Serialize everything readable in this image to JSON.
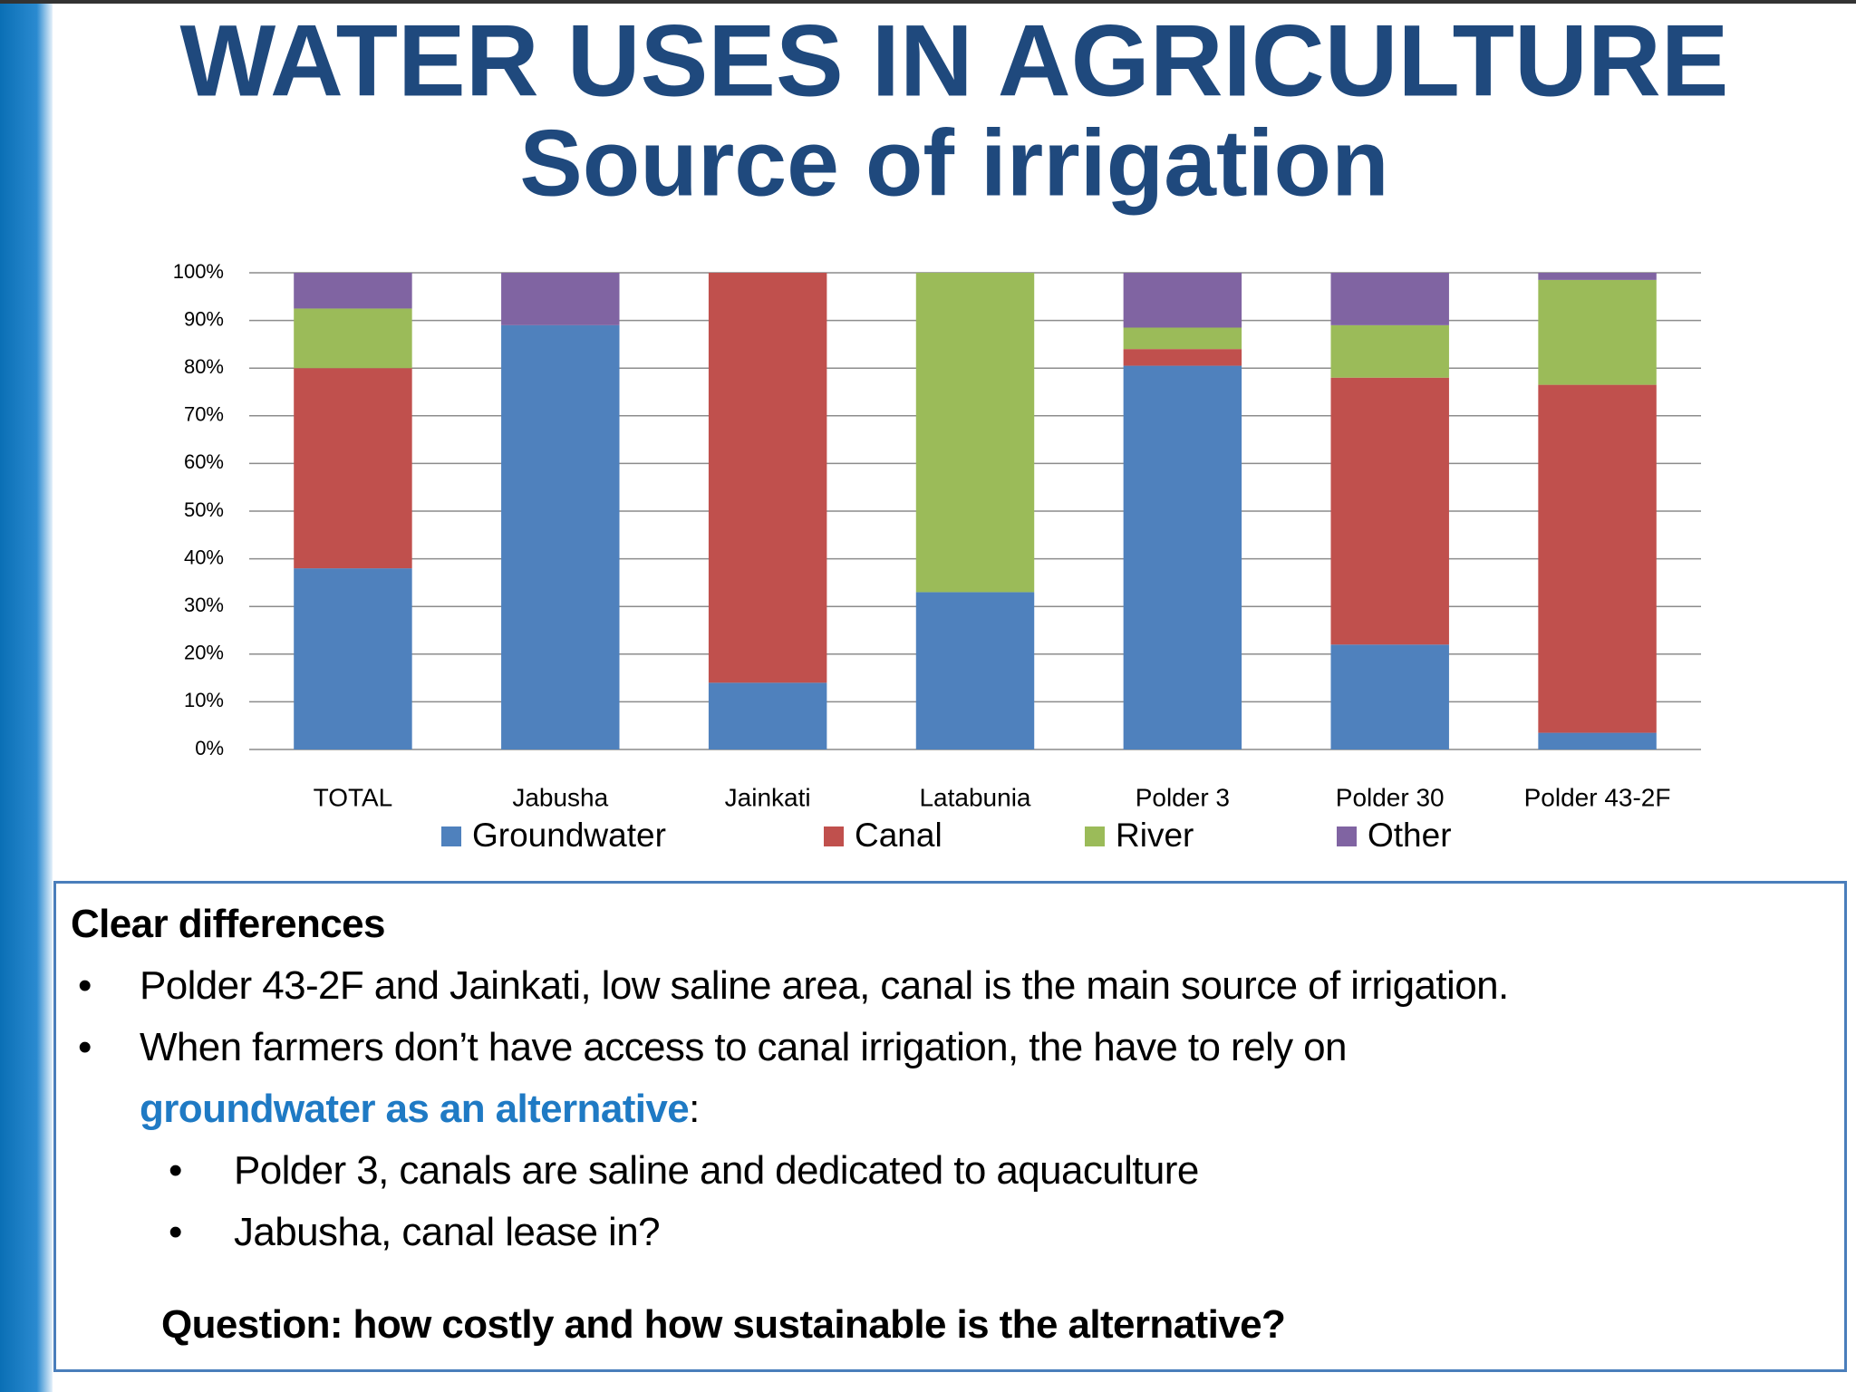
{
  "chart_data": {
    "type": "stacked_bar",
    "title": "WATER USES IN AGRICULTURE",
    "subtitle": "Source of irrigation",
    "categories": [
      "TOTAL",
      "Jabusha",
      "Jainkati",
      "Latabunia",
      "Polder 3",
      "Polder 30",
      "Polder 43-2F"
    ],
    "series": [
      {
        "name": "Groundwater",
        "color": "#4f81bd",
        "values": [
          38,
          89,
          14,
          33,
          80.5,
          22,
          3.5
        ]
      },
      {
        "name": "Canal",
        "color": "#c0504d",
        "values": [
          42,
          0,
          86,
          0,
          3.5,
          56,
          73
        ]
      },
      {
        "name": "River",
        "color": "#9bbb59",
        "values": [
          12.5,
          0,
          0,
          67,
          4.5,
          11,
          22
        ]
      },
      {
        "name": "Other",
        "color": "#8064a2",
        "values": [
          7.5,
          11,
          0,
          0,
          11.5,
          11,
          1.5
        ]
      }
    ],
    "ylim": [
      0,
      100
    ],
    "yticks": [
      {
        "value": 0,
        "label": "0%"
      },
      {
        "value": 10,
        "label": "10%"
      },
      {
        "value": 20,
        "label": "20%"
      },
      {
        "value": 30,
        "label": "30%"
      },
      {
        "value": 40,
        "label": "40%"
      },
      {
        "value": 50,
        "label": "50%"
      },
      {
        "value": 60,
        "label": "60%"
      },
      {
        "value": 70,
        "label": "70%"
      },
      {
        "value": 80,
        "label": "80%"
      },
      {
        "value": 90,
        "label": "90%"
      },
      {
        "value": 100,
        "label": "100%"
      }
    ],
    "grid": true,
    "legend": "bottom"
  },
  "notes": {
    "heading": "Clear differences",
    "bullets": [
      {
        "text": "Polder 43-2F and Jainkati, low saline area, canal is the main source of irrigation."
      },
      {
        "text": "When farmers don’t have access to canal irrigation, the have to rely on",
        "highlight": "groundwater as an alternative",
        "end": ":"
      }
    ],
    "sub_bullets": [
      "Polder 3,  canals are saline and dedicated to aquaculture",
      "Jabusha, canal lease in?"
    ],
    "question": "Question: how costly and how sustainable is the alternative?"
  }
}
